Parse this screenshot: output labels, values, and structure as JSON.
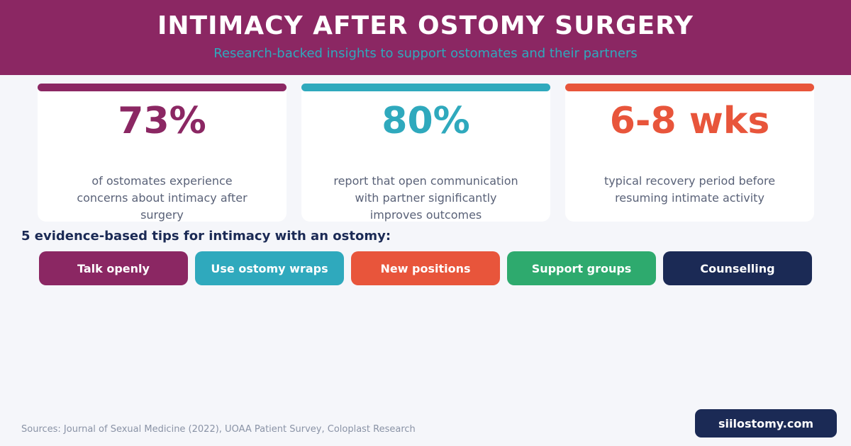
{
  "header": {
    "title": "INTIMACY AFTER OSTOMY SURGERY",
    "subtitle": "Research-backed insights to support ostomates and their partners"
  },
  "stats": [
    {
      "value": "73%",
      "description": "of ostomates experience concerns about intimacy after surgery",
      "color": "#8b2763"
    },
    {
      "value": "80%",
      "description": "report that open communication with partner significantly improves outcomes",
      "color": "#2fa9bd"
    },
    {
      "value": "6-8 wks",
      "description": "typical recovery period before resuming intimate activity",
      "color": "#e8553b"
    }
  ],
  "tips": {
    "heading": "5 evidence-based tips for intimacy with an ostomy:",
    "items": [
      {
        "label": "Talk openly",
        "color": "#8b2763"
      },
      {
        "label": "Use ostomy wraps",
        "color": "#2fa9bd"
      },
      {
        "label": "New positions",
        "color": "#e8553b"
      },
      {
        "label": "Support groups",
        "color": "#2eaa6e"
      },
      {
        "label": "Counselling",
        "color": "#1b2a55"
      }
    ]
  },
  "footer": {
    "sources": "Sources: Journal of Sexual Medicine (2022), UOAA Patient Survey, Coloplast Research",
    "site": "siilostomy.com"
  }
}
